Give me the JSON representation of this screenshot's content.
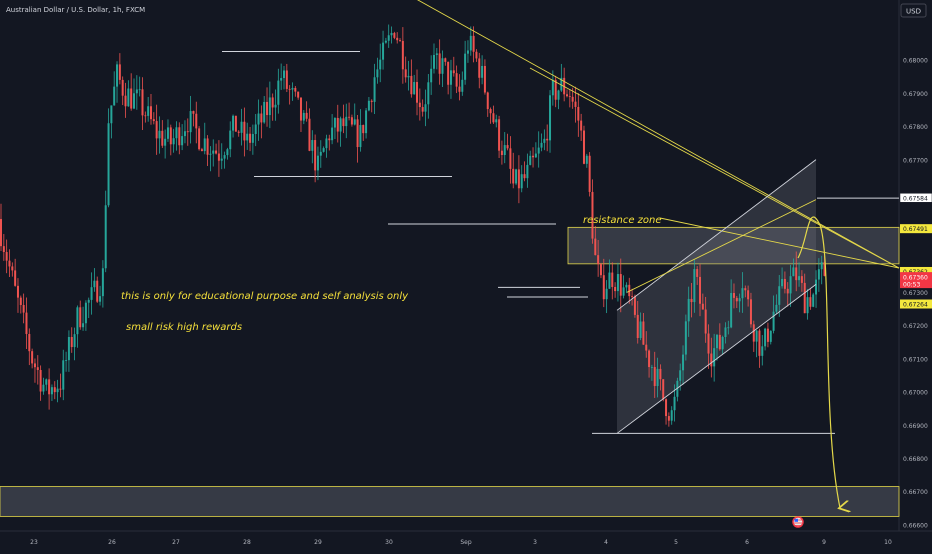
{
  "symbol_title": "Australian Dollar / U.S. Dollar, 1h, FXCM",
  "currency_button": "USD",
  "colors": {
    "background": "#131722",
    "up_candle": "#26a69a",
    "down_candle": "#ef5350",
    "trendline": "#e4d84a",
    "annotation_text": "#f5e03b",
    "level_line": "#d1d4dc",
    "zone_fill": "#787b86",
    "axis_text": "#b2b5be",
    "price_badge_yellow": "#f4e83d",
    "price_badge_red": "#f23645"
  },
  "chart_data": {
    "type": "candlestick",
    "y_range": [
      0.6658,
      0.6818
    ],
    "price_ticks": [
      "0.68000",
      "0.67900",
      "0.67800",
      "0.67700",
      "0.67300",
      "0.67200",
      "0.67100",
      "0.67000",
      "0.66900",
      "0.66800",
      "0.66700",
      "0.66600"
    ],
    "x_ticks": [
      "23",
      "26",
      "27",
      "28",
      "29",
      "30",
      "Sep",
      "3",
      "4",
      "5",
      "6",
      "9",
      "10"
    ],
    "price_badges": [
      {
        "label": "0.67584",
        "price": 0.67584,
        "style": "white"
      },
      {
        "label": "0.67491",
        "price": 0.67491,
        "style": "yellow"
      },
      {
        "label": "0.67362",
        "price": 0.67362,
        "style": "yellow"
      },
      {
        "label": "0.67360",
        "sub": "00:53",
        "price": 0.67345,
        "style": "red"
      },
      {
        "label": "0.67264",
        "price": 0.67264,
        "style": "yellow"
      }
    ],
    "annotations": {
      "resistance_zone_label": "resistance zone",
      "note_line_1": "this is only for educational purpose and self analysis only",
      "note_line_2": "small risk high rewards"
    },
    "resistance_zone": {
      "top": 0.67495,
      "bottom": 0.67385
    },
    "support_zone": {
      "top": 0.66714,
      "bottom": 0.66624
    },
    "channel": {
      "upper_start": 0.67245,
      "upper_end": 0.67699,
      "lower_start": 0.66874,
      "lower_end": 0.67323
    },
    "levels": [
      0.68025,
      0.67648,
      0.67505,
      0.67314,
      0.67285,
      0.67583,
      0.66874
    ],
    "bars": 250,
    "anchors": [
      [
        0,
        0.6752
      ],
      [
        6,
        0.673
      ],
      [
        12,
        0.671
      ],
      [
        17,
        0.67
      ],
      [
        22,
        0.6703
      ],
      [
        28,
        0.6722
      ],
      [
        33,
        0.6728
      ],
      [
        37,
        0.6735
      ],
      [
        39,
        0.6782
      ],
      [
        42,
        0.6795
      ],
      [
        45,
        0.679
      ],
      [
        50,
        0.6787
      ],
      [
        56,
        0.6778
      ],
      [
        61,
        0.6775
      ],
      [
        67,
        0.6782
      ],
      [
        72,
        0.6776
      ],
      [
        78,
        0.6772
      ],
      [
        84,
        0.678
      ],
      [
        88,
        0.6775
      ],
      [
        94,
        0.6783
      ],
      [
        98,
        0.679
      ],
      [
        100,
        0.6795
      ],
      [
        105,
        0.6787
      ],
      [
        110,
        0.6776
      ],
      [
        113,
        0.6767
      ],
      [
        117,
        0.6778
      ],
      [
        122,
        0.678
      ],
      [
        128,
        0.6777
      ],
      [
        133,
        0.6795
      ],
      [
        137,
        0.6803
      ],
      [
        140,
        0.681
      ],
      [
        145,
        0.6796
      ],
      [
        150,
        0.6786
      ],
      [
        155,
        0.68
      ],
      [
        160,
        0.6794
      ],
      [
        163,
        0.679
      ],
      [
        166,
        0.6805
      ],
      [
        170,
        0.6798
      ],
      [
        174,
        0.6785
      ],
      [
        177,
        0.6776
      ],
      [
        180,
        0.677
      ],
      [
        182,
        0.6762
      ],
      [
        186,
        0.6764
      ],
      [
        190,
        0.677
      ],
      [
        193,
        0.6775
      ],
      [
        196,
        0.679
      ],
      [
        199,
        0.6792
      ],
      [
        202,
        0.679
      ],
      [
        205,
        0.6782
      ],
      [
        208,
        0.6768
      ],
      [
        211,
        0.674
      ],
      [
        213,
        0.6731
      ],
      [
        217,
        0.6735
      ],
      [
        220,
        0.6732
      ],
      [
        223,
        0.6727
      ],
      [
        226,
        0.6719
      ],
      [
        229,
        0.6712
      ],
      [
        232,
        0.6706
      ],
      [
        235,
        0.6698
      ],
      [
        238,
        0.6693
      ],
      [
        240,
        0.67
      ],
      [
        243,
        0.6718
      ],
      [
        246,
        0.6735
      ],
      [
        249,
        0.6723
      ],
      [
        252,
        0.6712
      ],
      [
        255,
        0.6714
      ],
      [
        259,
        0.6727
      ],
      [
        263,
        0.6734
      ],
      [
        266,
        0.6722
      ],
      [
        270,
        0.6712
      ],
      [
        274,
        0.6724
      ],
      [
        278,
        0.6732
      ],
      [
        282,
        0.6735
      ],
      [
        285,
        0.6728
      ],
      [
        288,
        0.6729
      ],
      [
        291,
        0.6736
      ]
    ]
  }
}
